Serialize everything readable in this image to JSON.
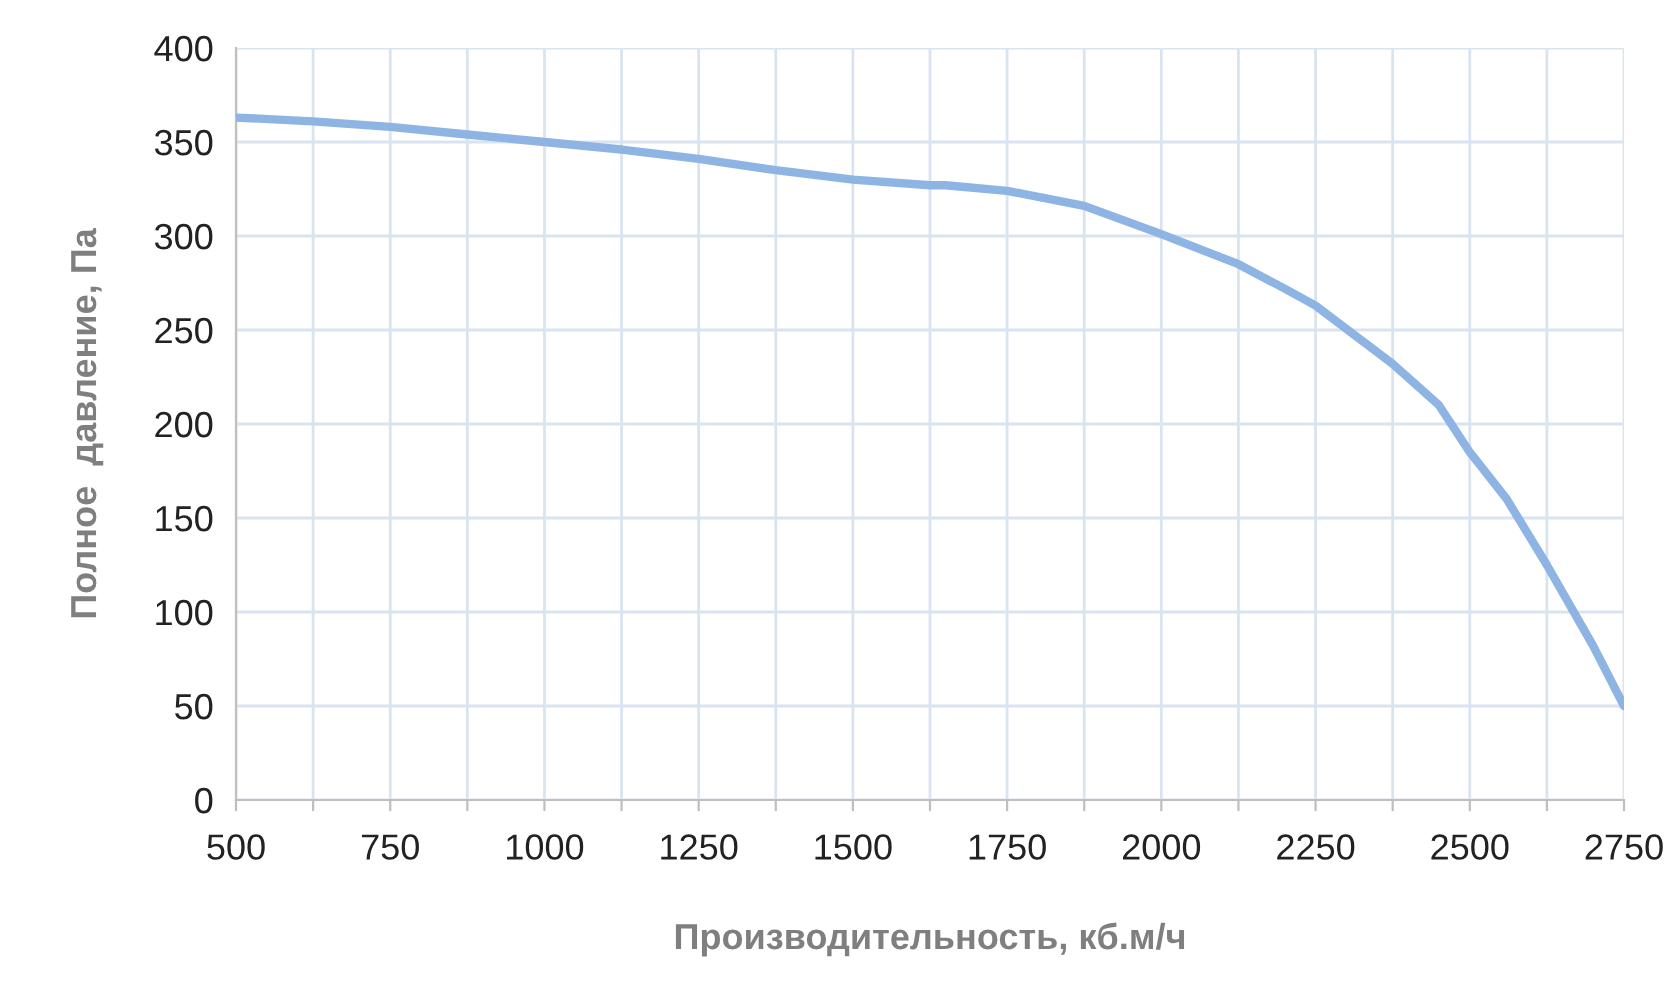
{
  "chart_data": {
    "type": "line",
    "xlabel": "Производительность, кб.м/ч",
    "ylabel": "Полное  давление, Па",
    "x": [
      500,
      625,
      750,
      875,
      1000,
      1125,
      1250,
      1375,
      1500,
      1625,
      1650,
      1750,
      1875,
      2000,
      2125,
      2200,
      2250,
      2375,
      2450,
      2500,
      2560,
      2625,
      2700,
      2750
    ],
    "series": [
      {
        "color": "#8eb4e3",
        "values": [
          363,
          361,
          358,
          354,
          350,
          346,
          341,
          335,
          330,
          327,
          327,
          324,
          316,
          301,
          285,
          272,
          263,
          232,
          210,
          185,
          160,
          125,
          82,
          50
        ]
      }
    ],
    "xlim": [
      500,
      2750
    ],
    "xticks": [
      500,
      {
        "value": 625,
        "label": null
      },
      750,
      {
        "value": 875,
        "label": null
      },
      1000,
      {
        "value": 1125,
        "label": null
      },
      1250,
      {
        "value": 1375,
        "label": null
      },
      1500,
      {
        "value": 1625,
        "label": null
      },
      1750,
      {
        "value": 1875,
        "label": null
      },
      2000,
      {
        "value": 2125,
        "label": null
      },
      2250,
      {
        "value": 2375,
        "label": null
      },
      2500,
      {
        "value": 2625,
        "label": null
      },
      2750
    ],
    "ylim": [
      0,
      400
    ],
    "yticks": [
      0,
      50,
      100,
      150,
      200,
      250,
      300,
      350,
      400
    ],
    "grid": true,
    "marker": "none",
    "line_style": "solid"
  }
}
